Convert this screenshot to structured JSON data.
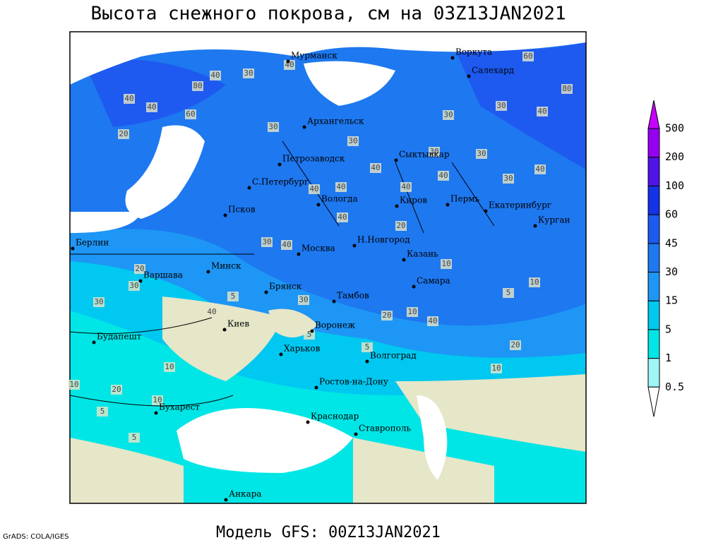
{
  "header": {
    "title": "Высота снежного покрова, см на 03Z13JAN2021"
  },
  "footer": {
    "model": "Модель GFS: 00Z13JAN2021",
    "credit": "GrADS: COLA/IGES"
  },
  "map": {
    "cities": [
      "Мурманск",
      "Воркута",
      "Салехард",
      "Архангельск",
      "Петрозаводск",
      "Сыктывкар",
      "С.Петербург",
      "Вологда",
      "Киров",
      "Пермь",
      "Екатеринбург",
      "Курган",
      "Псков",
      "Берлин",
      "Москва",
      "Н.Новгород",
      "Казань",
      "Минск",
      "Варшава",
      "Брянск",
      "Самара",
      "Тамбов",
      "Киев",
      "Воронеж",
      "Будапешт",
      "Харьков",
      "Волгоград",
      "Ростов-на-Дону",
      "Бухарест",
      "Краснодар",
      "Ставрополь",
      "Анкара"
    ],
    "contour_labels": [
      40,
      80,
      40,
      60,
      40,
      30,
      40,
      20,
      30,
      30,
      40,
      40,
      60,
      30,
      30,
      40,
      30,
      30,
      30,
      40,
      40,
      40,
      40,
      40,
      30,
      40,
      20,
      10,
      5,
      10,
      10,
      20,
      30,
      40,
      30,
      20,
      30,
      5,
      5,
      5,
      10,
      10,
      20,
      5,
      5,
      10,
      10,
      20,
      40,
      80
    ]
  },
  "legend": {
    "levels": [
      0.5,
      1,
      5,
      15,
      30,
      45,
      60,
      100,
      200,
      500
    ],
    "colors": [
      "#ffffff",
      "#a0f5f5",
      "#00e6e6",
      "#00c8f0",
      "#1e96f5",
      "#1e78f0",
      "#1e5af0",
      "#1432e6",
      "#5014e6",
      "#9600f0",
      "#c800ff"
    ]
  }
}
